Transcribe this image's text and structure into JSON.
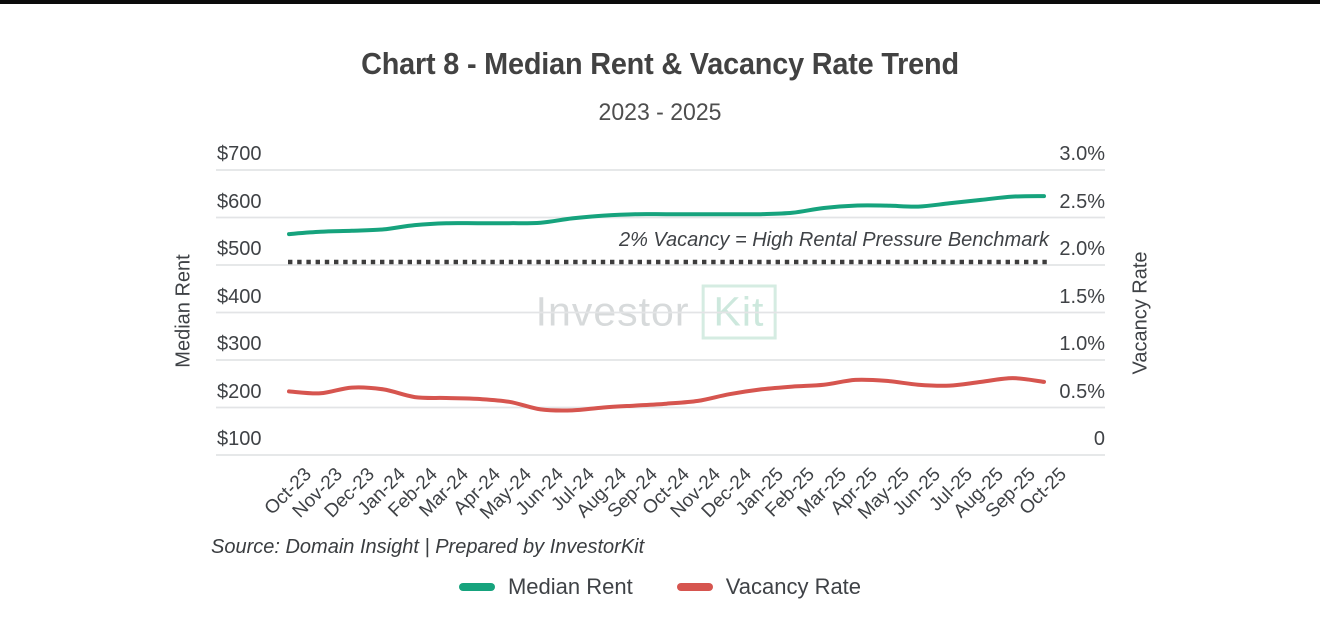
{
  "page": {
    "title": "Chart 8 - Median Rent & Vacancy Rate Trend",
    "subtitle": "2023 - 2025"
  },
  "watermark": {
    "part1": "Investor",
    "part2": "Kit"
  },
  "source_note": "Source: Domain Insight | Prepared by InvestorKit",
  "legend": [
    {
      "label": "Median Rent",
      "color": "#16a37d"
    },
    {
      "label": "Vacancy Rate",
      "color": "#d6554f"
    }
  ],
  "chart_data": {
    "type": "line",
    "title": "Chart 8 - Median Rent & Vacancy Rate Trend",
    "subtitle": "2023 - 2025",
    "categories": [
      "Oct-23",
      "Nov-23",
      "Dec-23",
      "Jan-24",
      "Feb-24",
      "Mar-24",
      "Apr-24",
      "May-24",
      "Jun-24",
      "Jul-24",
      "Aug-24",
      "Sep-24",
      "Oct-24",
      "Nov-24",
      "Dec-24",
      "Jan-25",
      "Feb-25",
      "Mar-25",
      "Apr-25",
      "May-25",
      "Jun-25",
      "Jul-25",
      "Aug-25",
      "Sep-25",
      "Oct-25"
    ],
    "series": [
      {
        "name": "Median Rent",
        "axis": "left",
        "color": "#16a37d",
        "values": [
          565,
          570,
          572,
          575,
          584,
          588,
          588,
          588,
          589,
          598,
          604,
          607,
          607,
          607,
          607,
          607,
          610,
          620,
          625,
          625,
          623,
          630,
          637,
          644,
          645
        ]
      },
      {
        "name": "Vacancy Rate",
        "axis": "right",
        "color": "#d6554f",
        "values": [
          0.67,
          0.65,
          0.71,
          0.69,
          0.61,
          0.6,
          0.59,
          0.56,
          0.48,
          0.47,
          0.5,
          0.52,
          0.54,
          0.57,
          0.64,
          0.69,
          0.72,
          0.74,
          0.79,
          0.78,
          0.74,
          0.73,
          0.77,
          0.81,
          0.77
        ]
      }
    ],
    "left_axis": {
      "label": "Median Rent",
      "range": [
        100,
        700
      ],
      "tick_values": [
        700,
        600,
        500,
        400,
        300,
        200,
        100
      ],
      "tick_labels": [
        "$700",
        "$600",
        "$500",
        "$400",
        "$300",
        "$200",
        "$100"
      ]
    },
    "right_axis": {
      "label": "Vacancy Rate",
      "range": [
        0,
        3
      ],
      "tick_values": [
        3.0,
        2.5,
        2.0,
        1.5,
        1.0,
        0.5,
        0
      ],
      "tick_labels": [
        "3.0%",
        "2.5%",
        "2.0%",
        "1.5%",
        "1.0%",
        "0.5%",
        "0"
      ]
    },
    "benchmark": {
      "value": 2.0,
      "axis": "right",
      "style": "dotted",
      "color": "#3d3d3d",
      "label": "2% Vacancy = High Rental Pressure Benchmark"
    },
    "grid": true,
    "legend_position": "bottom"
  }
}
